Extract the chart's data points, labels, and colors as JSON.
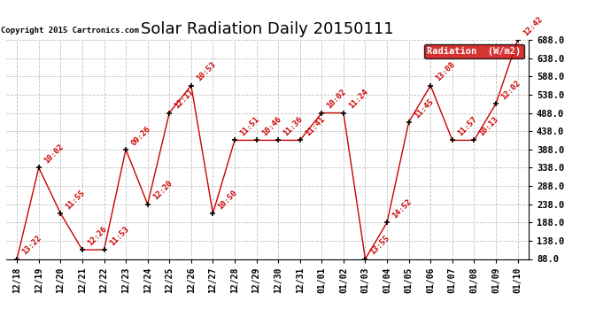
{
  "title": "Solar Radiation Daily 20150111",
  "copyright": "Copyright 2015 Cartronics.com",
  "legend_label": "Radiation  (W/m2)",
  "dates": [
    "12/18",
    "12/19",
    "12/20",
    "12/21",
    "12/22",
    "12/23",
    "12/24",
    "12/25",
    "12/26",
    "12/27",
    "12/28",
    "12/29",
    "12/30",
    "12/31",
    "01/01",
    "01/02",
    "01/03",
    "01/04",
    "01/05",
    "01/06",
    "01/07",
    "01/08",
    "01/09",
    "01/10"
  ],
  "values": [
    88,
    338,
    213,
    113,
    113,
    388,
    238,
    488,
    563,
    213,
    413,
    413,
    413,
    413,
    488,
    488,
    88,
    188,
    463,
    563,
    413,
    413,
    513,
    688
  ],
  "labels": [
    "13:22",
    "10:02",
    "11:55",
    "12:26",
    "11:53",
    "09:26",
    "12:20",
    "12:11",
    "10:53",
    "10:50",
    "11:51",
    "10:46",
    "11:36",
    "11:41",
    "10:02",
    "11:24",
    "13:55",
    "14:52",
    "11:45",
    "13:08",
    "11:57",
    "10:13",
    "12:02",
    "12:42"
  ],
  "line_color": "#cc0000",
  "marker_color": "#000000",
  "label_color": "#cc0000",
  "bg_color": "#ffffff",
  "grid_color": "#c0c0c0",
  "ylim": [
    88.0,
    688.0
  ],
  "yticks": [
    88.0,
    138.0,
    188.0,
    238.0,
    288.0,
    338.0,
    388.0,
    438.0,
    488.0,
    538.0,
    588.0,
    638.0,
    688.0
  ],
  "title_fontsize": 13,
  "legend_bg": "#cc0000",
  "legend_fg": "#ffffff",
  "fig_width": 6.9,
  "fig_height": 3.75,
  "dpi": 100
}
